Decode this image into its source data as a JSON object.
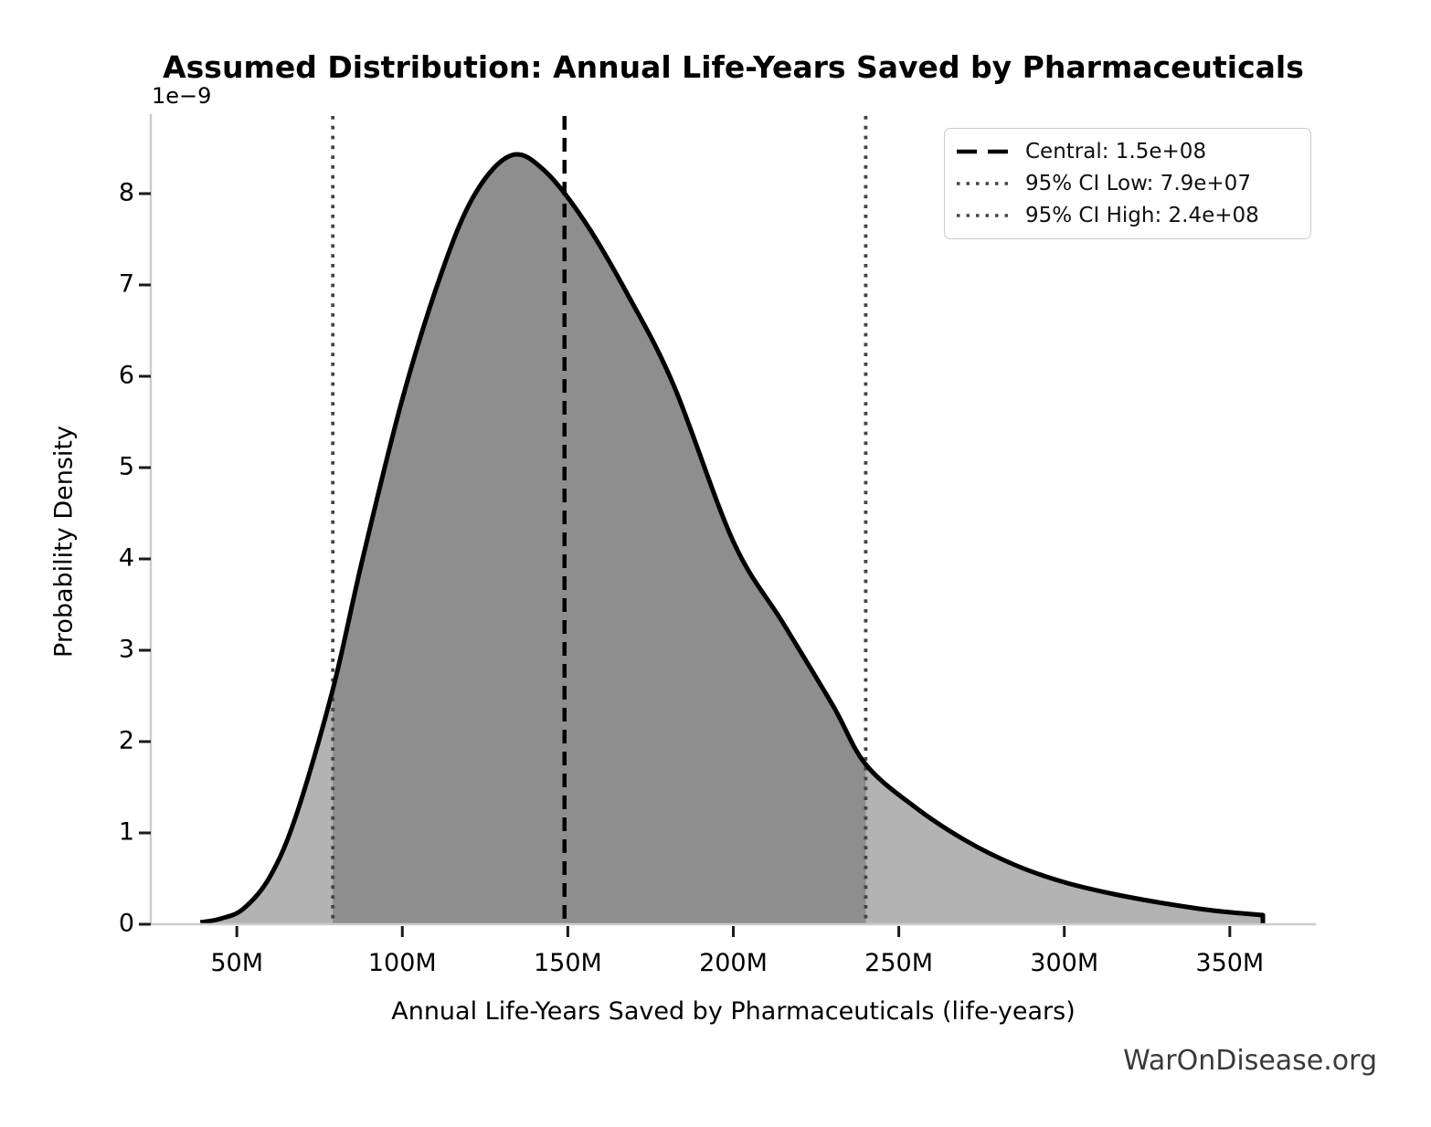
{
  "title": "Assumed Distribution: Annual Life-Years Saved by Pharmaceuticals",
  "watermark": "WarOnDisease.org",
  "chart_data": {
    "type": "area",
    "title": "Assumed Distribution: Annual Life-Years Saved by Pharmaceuticals",
    "xlabel": "Annual Life-Years Saved by Pharmaceuticals (life-years)",
    "ylabel": "Probability Density",
    "y_offset_label": "1e−9",
    "grid": false,
    "legend_position": "upper right",
    "xlim": [
      24000000.0,
      376000000.0
    ],
    "ylim": [
      0,
      8.87e-09
    ],
    "x_ticks": [
      {
        "label": "50M",
        "value": 50000000.0
      },
      {
        "label": "100M",
        "value": 100000000.0
      },
      {
        "label": "150M",
        "value": 150000000.0
      },
      {
        "label": "200M",
        "value": 200000000.0
      },
      {
        "label": "250M",
        "value": 250000000.0
      },
      {
        "label": "300M",
        "value": 300000000.0
      },
      {
        "label": "350M",
        "value": 350000000.0
      }
    ],
    "y_ticks": [
      {
        "label": "0",
        "value": 0
      },
      {
        "label": "1",
        "value": 1e-09
      },
      {
        "label": "2",
        "value": 2e-09
      },
      {
        "label": "3",
        "value": 3e-09
      },
      {
        "label": "4",
        "value": 4e-09
      },
      {
        "label": "5",
        "value": 5e-09
      },
      {
        "label": "6",
        "value": 6e-09
      },
      {
        "label": "7",
        "value": 7e-09
      },
      {
        "label": "8",
        "value": 8e-09
      }
    ],
    "curve": {
      "description": "probability density curve (skewed/lognormal-like), densities in 1e-9 units at x in millions of life-years",
      "points_x_millions": [
        39,
        45,
        52,
        60,
        68,
        79,
        88,
        100,
        112,
        122,
        133,
        143,
        155,
        168,
        182,
        200,
        215,
        230,
        240,
        255,
        270,
        285,
        300,
        315,
        330,
        345,
        360
      ],
      "points_density_1e9": [
        0.02,
        0.06,
        0.17,
        0.52,
        1.2,
        2.57,
        4.0,
        5.75,
        7.15,
        8.0,
        8.42,
        8.25,
        7.7,
        6.9,
        5.9,
        4.19,
        3.3,
        2.4,
        1.75,
        1.28,
        0.92,
        0.65,
        0.46,
        0.33,
        0.23,
        0.15,
        0.1
      ],
      "peak_density": 8.42e-09,
      "peak_x": 133000000.0,
      "x_start": 39000000.0,
      "x_end": 360000000.0,
      "ci_low_index": 5,
      "ci_high_index": 18
    },
    "central": {
      "value": 149000000.0,
      "label": "Central: 1.5e+08"
    },
    "ci_low": {
      "value": 79000000.0,
      "label": "95% CI Low: 7.9e+07"
    },
    "ci_high": {
      "value": 240000000.0,
      "label": "95% CI High: 2.4e+08"
    },
    "legend": [
      {
        "label": "Central: 1.5e+08",
        "style": "dashed",
        "color": "#000000"
      },
      {
        "label": "95% CI Low: 7.9e+07",
        "style": "dotted",
        "color": "#444444"
      },
      {
        "label": "95% CI High: 2.4e+08",
        "style": "dotted",
        "color": "#444444"
      }
    ],
    "colors": {
      "curve": "#000000",
      "fill_light": "#b3b3b3",
      "fill_dark": "#8e8e8e",
      "central_line": "#000000",
      "ci_line": "#444444",
      "spine": "#cccccc",
      "tick": "#1a1a1a",
      "text": "#000000",
      "watermark": "#3a3a3a"
    }
  }
}
